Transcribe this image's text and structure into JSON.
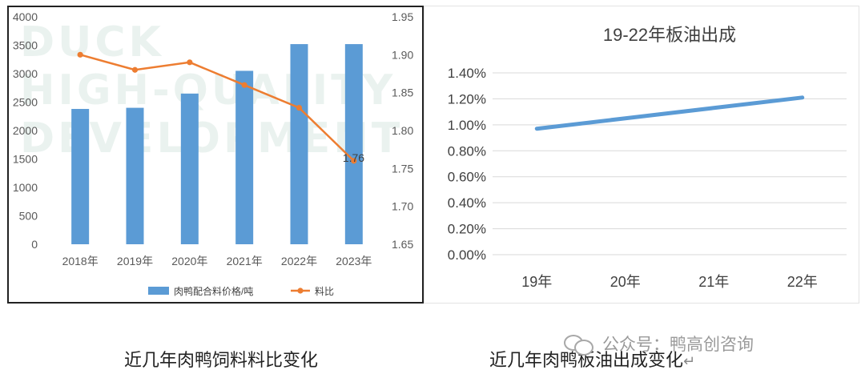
{
  "watermark": {
    "lines": [
      "DUCK",
      "HIGH-QUALITY",
      "DEVELOPMENT"
    ]
  },
  "chart_data": [
    {
      "type": "bar",
      "title": "",
      "categories": [
        "2018年",
        "2019年",
        "2020年",
        "2021年",
        "2022年",
        "2023年"
      ],
      "series": [
        {
          "name": "肉鸭配合料价格/吨",
          "type": "bar",
          "axis": "left",
          "color": "#5b9bd5",
          "values": [
            2380,
            2400,
            2650,
            3050,
            3520,
            3520
          ]
        },
        {
          "name": "料比",
          "type": "line",
          "axis": "right",
          "color": "#ed7d31",
          "values": [
            1.9,
            1.88,
            1.89,
            1.86,
            1.83,
            1.76
          ]
        }
      ],
      "y_left": {
        "ylim": [
          0,
          4000
        ],
        "ticks": [
          "0",
          "500",
          "1000",
          "1500",
          "2000",
          "2500",
          "3000",
          "3500",
          "4000"
        ]
      },
      "y_right": {
        "ylim": [
          1.65,
          1.95
        ],
        "ticks": [
          "1.65",
          "1.70",
          "1.75",
          "1.80",
          "1.85",
          "1.90",
          "1.95"
        ]
      },
      "annotations": [
        {
          "text": "1.76",
          "series": "料比",
          "index": 5
        }
      ],
      "legend": "bottom",
      "grid": false
    },
    {
      "type": "line",
      "title": "19-22年板油出成",
      "categories": [
        "19年",
        "20年",
        "21年",
        "22年"
      ],
      "series": [
        {
          "color": "#5b9bd5",
          "values": [
            0.0097,
            0.0105,
            0.0113,
            0.0121
          ]
        }
      ],
      "ylim": [
        0,
        0.014
      ],
      "ticks": [
        "0.00%",
        "0.20%",
        "0.40%",
        "0.60%",
        "0.80%",
        "1.00%",
        "1.20%",
        "1.40%"
      ],
      "grid": true
    }
  ],
  "captions": {
    "left": "近几年肉鸭饲料料比变化",
    "right": "近几年肉鸭板油出成变化"
  },
  "right_caption_mark": "↵",
  "wechat": {
    "label": "公众号：鸭高创咨询",
    "icon": "wechat-icon"
  }
}
